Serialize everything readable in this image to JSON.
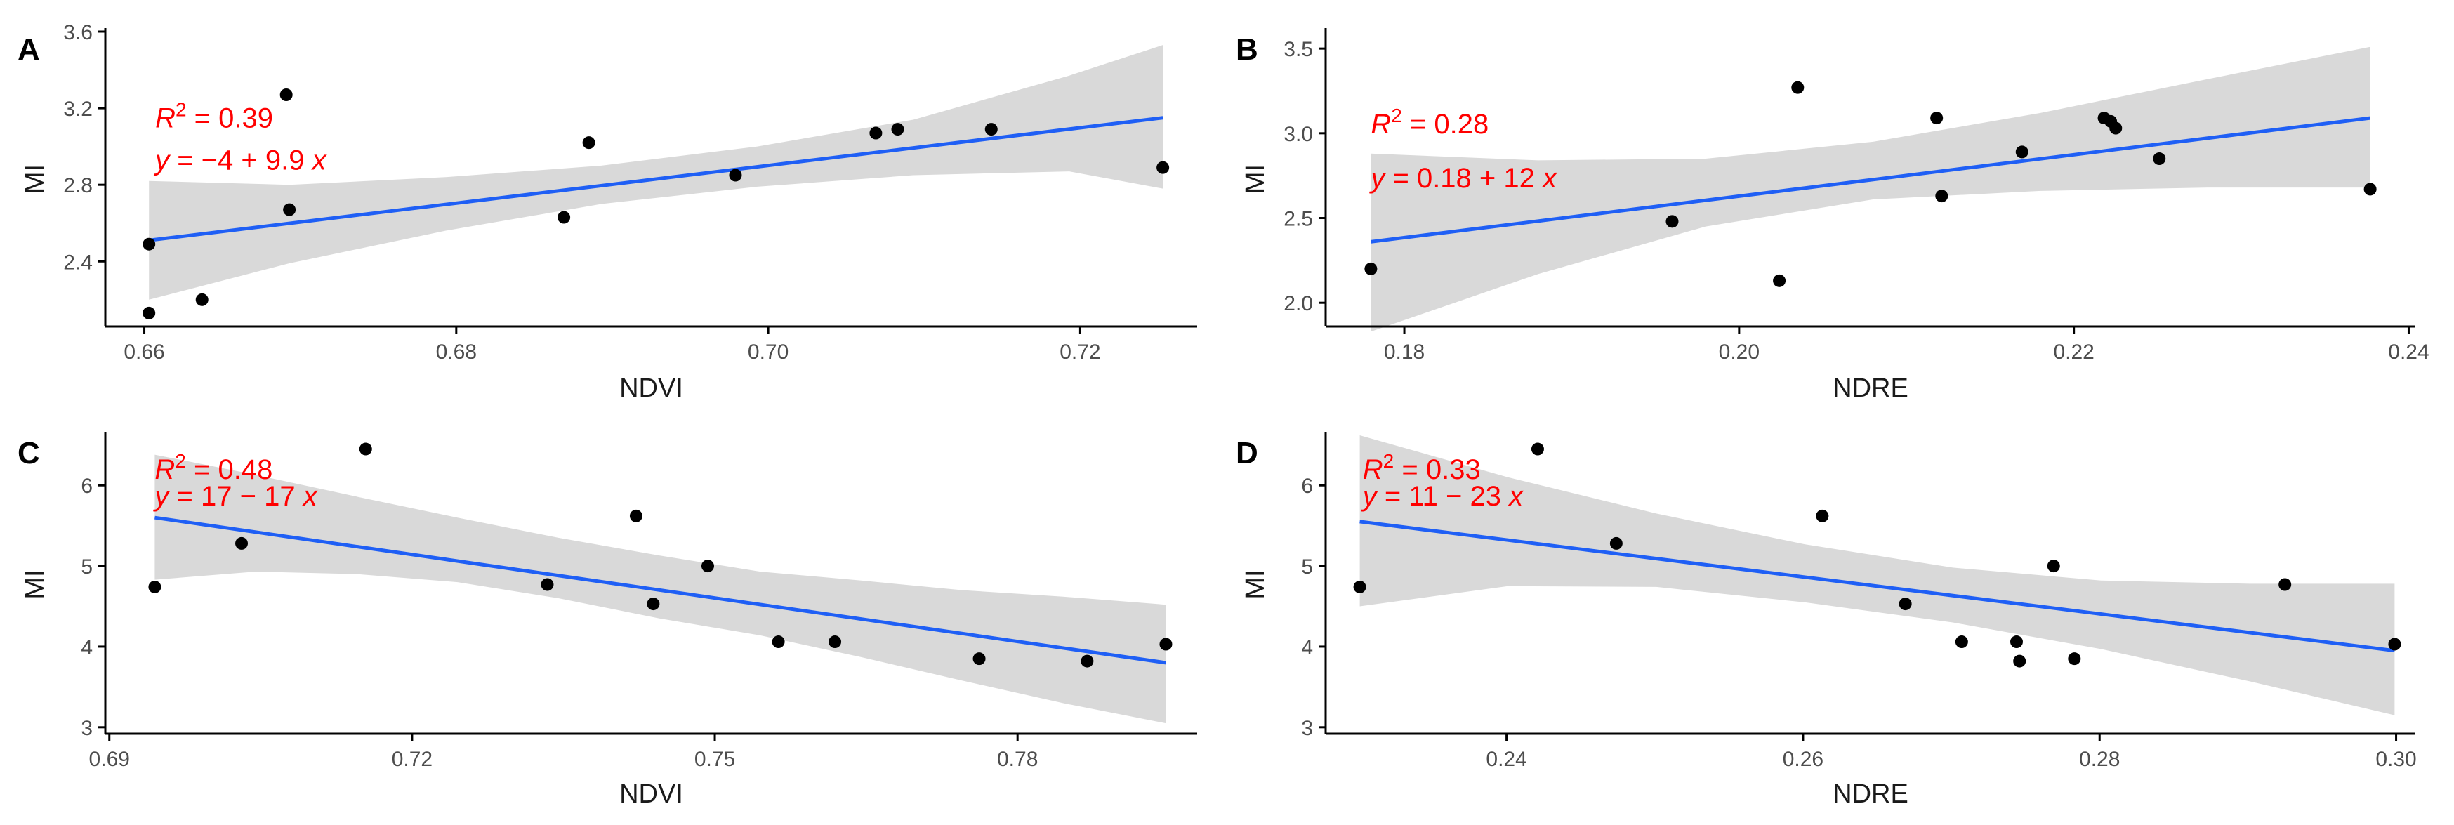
{
  "colors": {
    "line": "#1f5ff5",
    "band": "#d9d9d9",
    "point": "#000000",
    "equation": "#ff0000",
    "axis": "#000000"
  },
  "chart_data": [
    {
      "panel": "A",
      "type": "scatter",
      "xlabel": "NDVI",
      "ylabel": "MI",
      "xlim": [
        0.6575,
        0.7275
      ],
      "ylim": [
        2.06,
        3.6
      ],
      "xticks": [
        "0.66",
        "0.68",
        "0.70",
        "0.72"
      ],
      "xtick_values": [
        0.66,
        0.68,
        0.7,
        0.72
      ],
      "yticks": [
        "2.4",
        "2.8",
        "3.2",
        "3.6"
      ],
      "ytick_values": [
        2.4,
        2.8,
        3.2,
        3.6
      ],
      "points": [
        [
          0.6603,
          2.49
        ],
        [
          0.6603,
          2.13
        ],
        [
          0.6637,
          2.2
        ],
        [
          0.6691,
          3.27
        ],
        [
          0.6693,
          2.67
        ],
        [
          0.6869,
          2.63
        ],
        [
          0.6885,
          3.02
        ],
        [
          0.6979,
          2.85
        ],
        [
          0.7069,
          3.07
        ],
        [
          0.7083,
          3.09
        ],
        [
          0.7143,
          3.09
        ],
        [
          0.7253,
          2.89
        ]
      ],
      "fit": {
        "x": [
          0.6603,
          0.7253
        ],
        "y": [
          2.51,
          3.15
        ]
      },
      "band": {
        "x": [
          0.6603,
          0.6693,
          0.6793,
          0.6893,
          0.6993,
          0.7093,
          0.7193,
          0.7253
        ],
        "lower": [
          2.2,
          2.39,
          2.56,
          2.7,
          2.79,
          2.85,
          2.87,
          2.78
        ],
        "upper": [
          2.82,
          2.8,
          2.84,
          2.9,
          3.0,
          3.14,
          3.37,
          3.53
        ]
      },
      "r2_prefix": "R",
      "r2_sup": "2",
      "r2_value": " = 0.39",
      "eq_y": "y",
      "eq_rest": " = −4 + 9.9 ",
      "eq_x": "x",
      "anchor_x": 0.6607,
      "anchor_y": 3.1,
      "line2_y": 2.88
    },
    {
      "panel": "B",
      "type": "scatter",
      "xlabel": "NDRE",
      "ylabel": "MI",
      "xlim": [
        0.1753,
        0.2404
      ],
      "ylim": [
        1.86,
        3.6
      ],
      "xticks": [
        "0.18",
        "0.20",
        "0.22",
        "0.24"
      ],
      "xtick_values": [
        0.18,
        0.2,
        0.22,
        0.24
      ],
      "yticks": [
        "2.0",
        "2.5",
        "3.0",
        "3.5"
      ],
      "ytick_values": [
        2.0,
        2.5,
        3.0,
        3.5
      ],
      "points": [
        [
          0.178,
          2.2
        ],
        [
          0.196,
          2.48
        ],
        [
          0.2024,
          2.13
        ],
        [
          0.2035,
          3.27
        ],
        [
          0.2118,
          3.09
        ],
        [
          0.2121,
          2.63
        ],
        [
          0.2169,
          2.89
        ],
        [
          0.2218,
          3.09
        ],
        [
          0.2222,
          3.07
        ],
        [
          0.2225,
          3.03
        ],
        [
          0.2251,
          2.85
        ],
        [
          0.2377,
          2.67
        ]
      ],
      "fit": {
        "x": [
          0.178,
          0.2377
        ],
        "y": [
          2.36,
          3.09
        ]
      },
      "band": {
        "x": [
          0.178,
          0.188,
          0.198,
          0.208,
          0.218,
          0.228,
          0.2377
        ],
        "lower": [
          1.83,
          2.17,
          2.45,
          2.61,
          2.66,
          2.68,
          2.68
        ],
        "upper": [
          2.88,
          2.84,
          2.85,
          2.95,
          3.12,
          3.32,
          3.51
        ]
      },
      "r2_prefix": "R",
      "r2_sup": "2",
      "r2_value": " = 0.28",
      "eq_y": "y",
      "eq_rest": " = 0.18 + 12 ",
      "eq_x": "x",
      "anchor_x": 0.178,
      "anchor_y": 3.0,
      "line2_y": 2.68
    },
    {
      "panel": "C",
      "type": "scatter",
      "xlabel": "NDVI",
      "ylabel": "MI",
      "xlim": [
        0.6896,
        0.7978
      ],
      "ylim": [
        2.92,
        6.62
      ],
      "xticks": [
        "0.69",
        "0.72",
        "0.75",
        "0.78"
      ],
      "xtick_values": [
        0.69,
        0.72,
        0.75,
        0.78
      ],
      "yticks": [
        "3",
        "4",
        "5",
        "6"
      ],
      "ytick_values": [
        3,
        4,
        5,
        6
      ],
      "points": [
        [
          0.6945,
          4.74
        ],
        [
          0.7031,
          5.28
        ],
        [
          0.7154,
          6.45
        ],
        [
          0.7334,
          4.77
        ],
        [
          0.7422,
          5.62
        ],
        [
          0.7439,
          4.53
        ],
        [
          0.7493,
          5.0
        ],
        [
          0.7563,
          4.06
        ],
        [
          0.7619,
          4.06
        ],
        [
          0.7762,
          3.85
        ],
        [
          0.7869,
          3.82
        ],
        [
          0.7947,
          4.03
        ]
      ],
      "fit": {
        "x": [
          0.6945,
          0.7947
        ],
        "y": [
          5.6,
          3.8
        ]
      },
      "band": {
        "x": [
          0.6945,
          0.7045,
          0.7145,
          0.7245,
          0.7345,
          0.7445,
          0.7545,
          0.7645,
          0.7745,
          0.7845,
          0.7947
        ],
        "lower": [
          4.83,
          4.93,
          4.9,
          4.8,
          4.6,
          4.35,
          4.14,
          3.87,
          3.58,
          3.3,
          3.05
        ],
        "upper": [
          6.38,
          6.13,
          5.86,
          5.6,
          5.35,
          5.13,
          4.93,
          4.82,
          4.7,
          4.62,
          4.52
        ]
      },
      "r2_prefix": "R",
      "r2_sup": "2",
      "r2_value": " = 0.48",
      "eq_y": "y",
      "eq_rest": " = 17 − 17 ",
      "eq_x": "x",
      "anchor_x": 0.6945,
      "anchor_y": 6.08,
      "line2_y": 5.75
    },
    {
      "panel": "D",
      "type": "scatter",
      "xlabel": "NDRE",
      "ylabel": "MI",
      "xlim": [
        0.2278,
        0.3013
      ],
      "ylim": [
        2.92,
        6.62
      ],
      "xticks": [
        "0.24",
        "0.26",
        "0.28",
        "0.30"
      ],
      "xtick_values": [
        0.24,
        0.26,
        0.28,
        0.3
      ],
      "yticks": [
        "3",
        "4",
        "5",
        "6"
      ],
      "ytick_values": [
        3,
        4,
        5,
        6
      ],
      "points": [
        [
          0.2301,
          4.74
        ],
        [
          0.2421,
          6.45
        ],
        [
          0.2474,
          5.28
        ],
        [
          0.2613,
          5.62
        ],
        [
          0.2669,
          4.53
        ],
        [
          0.2707,
          4.06
        ],
        [
          0.2744,
          4.06
        ],
        [
          0.2746,
          3.82
        ],
        [
          0.2769,
          5.0
        ],
        [
          0.2783,
          3.85
        ],
        [
          0.2925,
          4.77
        ],
        [
          0.2999,
          4.03
        ]
      ],
      "fit": {
        "x": [
          0.2301,
          0.2999
        ],
        "y": [
          5.55,
          3.95
        ]
      },
      "band": {
        "x": [
          0.2301,
          0.2401,
          0.2501,
          0.2601,
          0.2701,
          0.2801,
          0.2901,
          0.2999
        ],
        "lower": [
          4.5,
          4.75,
          4.74,
          4.55,
          4.3,
          3.97,
          3.57,
          3.15
        ],
        "upper": [
          6.62,
          6.1,
          5.65,
          5.27,
          4.98,
          4.82,
          4.78,
          4.78
        ]
      },
      "r2_prefix": "R",
      "r2_sup": "2",
      "r2_value": " = 0.33",
      "eq_y": "y",
      "eq_rest": " = 11 − 23 ",
      "eq_x": "x",
      "anchor_x": 0.2303,
      "anchor_y": 6.08,
      "line2_y": 5.75
    }
  ]
}
